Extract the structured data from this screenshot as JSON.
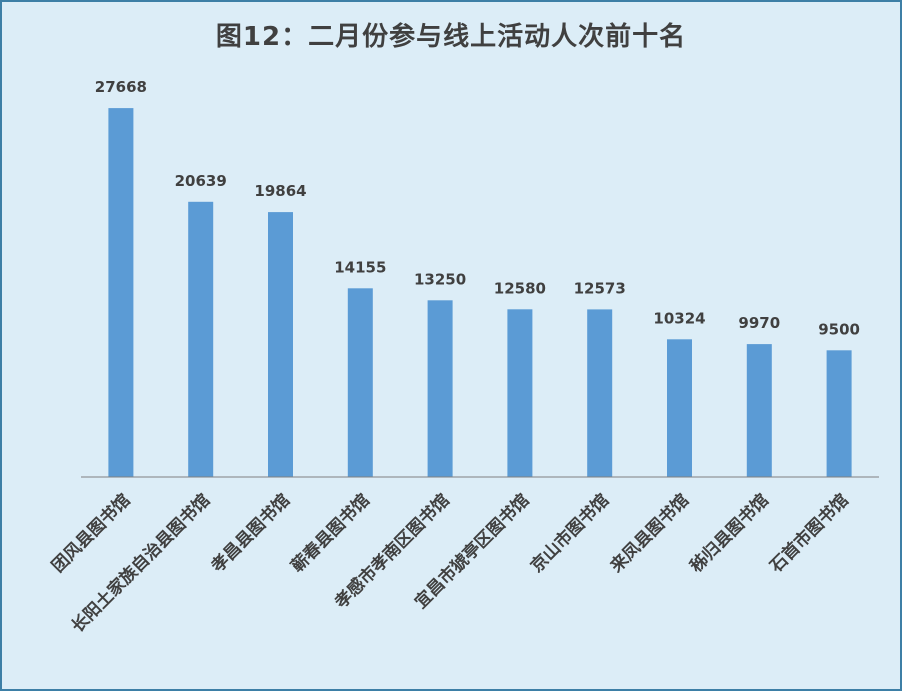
{
  "chart_data": {
    "type": "bar",
    "title": "图12：二月份参与线上活动人次前十名",
    "xlabel": "",
    "ylabel": "",
    "ylim": [
      0,
      30000
    ],
    "grid": false,
    "legend": "none",
    "bar_color": "#5b9bd5",
    "background_color": "#dcedf7",
    "categories": [
      "团风县图书馆",
      "长阳土家族自治县图书馆",
      "孝昌县图书馆",
      "蕲春县图书馆",
      "孝感市孝南区图书馆",
      "宜昌市猇亭区图书馆",
      "京山市图书馆",
      "来凤县图书馆",
      "秭归县图书馆",
      "石首市图书馆"
    ],
    "values": [
      27668,
      20639,
      19864,
      14155,
      13250,
      12580,
      12573,
      10324,
      9970,
      9500
    ],
    "value_labels": [
      "27668",
      "20639",
      "19864",
      "14155",
      "13250",
      "12580",
      "12573",
      "10324",
      "9970",
      "9500"
    ]
  }
}
